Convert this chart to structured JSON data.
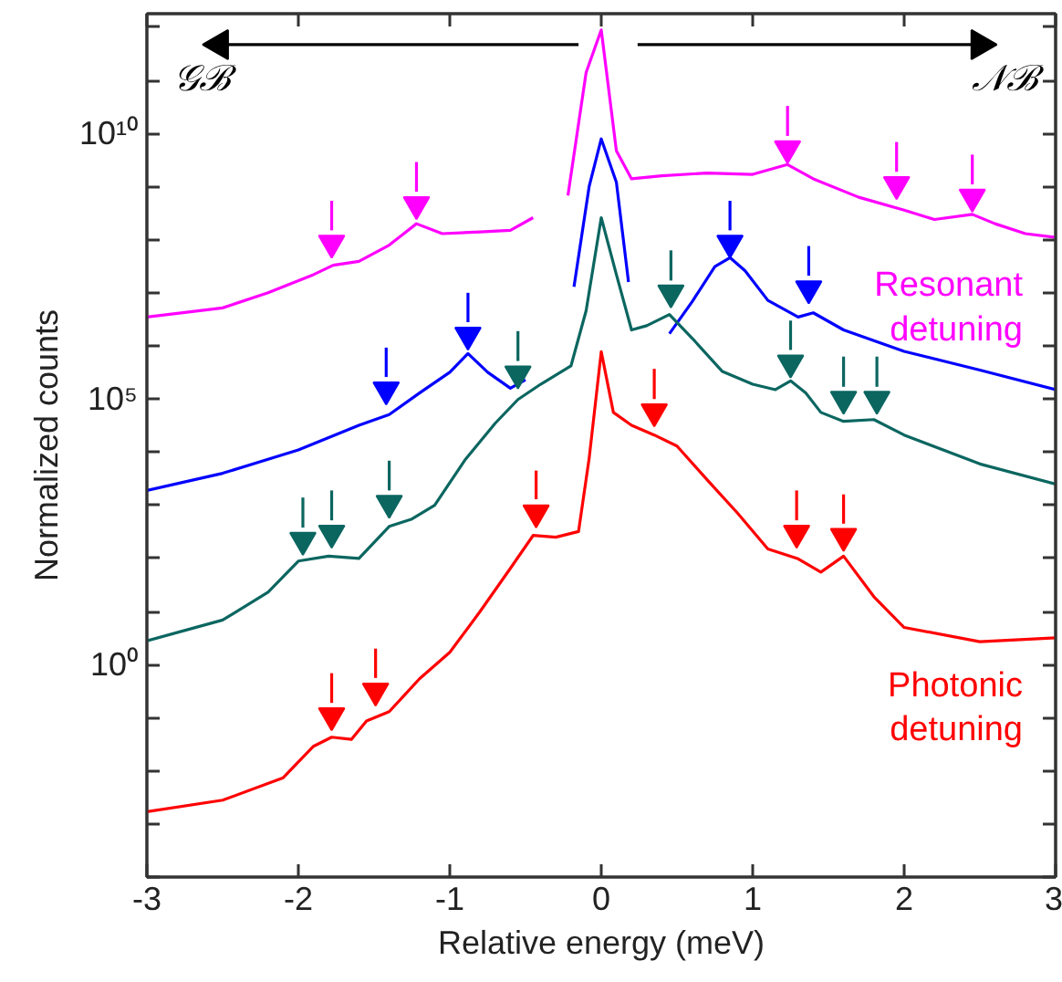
{
  "chart_data": {
    "type": "line",
    "xlabel": "Relative energy (meV)",
    "ylabel": "Normalized counts",
    "log": "y",
    "xlim": [
      -3,
      3
    ],
    "xticks": [
      -3,
      -2,
      -1,
      0,
      1,
      2,
      3
    ],
    "ylim": [
      0.0001,
      1800000000000.0
    ],
    "yticks": [
      {
        "value": 0.0001,
        "label": null
      },
      {
        "value": 0.001,
        "label": null
      },
      {
        "value": 0.01,
        "label": null
      },
      {
        "value": 0.1,
        "label": null
      },
      {
        "value": 1,
        "label": "10⁰"
      },
      {
        "value": 10,
        "label": null
      },
      {
        "value": 100,
        "label": null
      },
      {
        "value": 1000,
        "label": null
      },
      {
        "value": 10000,
        "label": null
      },
      {
        "value": 100000,
        "label": "10⁵"
      },
      {
        "value": 1000000,
        "label": null
      },
      {
        "value": 10000000,
        "label": null
      },
      {
        "value": 100000000,
        "label": null
      },
      {
        "value": 1000000000,
        "label": null
      },
      {
        "value": 10000000000,
        "label": "10¹⁰"
      },
      {
        "value": 100000000000,
        "label": null
      },
      {
        "value": 1000000000000,
        "label": null
      }
    ],
    "annotations": [
      "𝒢ℬ",
      "𝒩ℬ"
    ],
    "series": [
      {
        "name": "Resonant\ndetuning",
        "color": "#ff00ff",
        "x": [
          -3,
          -2.5,
          -2.2,
          -1.9,
          -1.77,
          -1.6,
          -1.4,
          -1.22,
          -1.05,
          -0.8,
          -0.6,
          -0.45,
          -0.35,
          -0.22,
          -0.1,
          0,
          0.1,
          0.2,
          0.4,
          0.7,
          1.0,
          1.23,
          1.4,
          1.7,
          2.0,
          2.2,
          2.45,
          2.6,
          2.8,
          3.0
        ],
        "values": [
          3500000.0,
          5200000.0,
          10000000.0,
          22000000.0,
          33000000.0,
          39000000.0,
          79000000.0,
          200000000.0,
          130000000.0,
          140000000.0,
          150000000.0,
          260000000.0,
          null,
          680000000.0,
          140000000000.0,
          890000000000.0,
          4700000000.0,
          1400000000.0,
          1600000000.0,
          1800000000.0,
          1700000000.0,
          2600000000.0,
          1400000000.0,
          630000000.0,
          360000000.0,
          240000000.0,
          300000000.0,
          200000000.0,
          130000000.0,
          110000000.0
        ]
      },
      {
        "color": "#0000ff",
        "x": [
          -3,
          -2.5,
          -2,
          -1.6,
          -1.4,
          -1.2,
          -1,
          -0.88,
          -0.75,
          -0.6,
          -0.5,
          -0.35,
          -0.18,
          -0.08,
          0,
          0.1,
          0.18,
          0.3,
          0.45,
          0.6,
          0.75,
          0.85,
          0.95,
          1.1,
          1.3,
          1.4,
          1.6,
          2.0,
          2.5,
          3.0
        ],
        "values": [
          1900.0,
          4000.0,
          11000.0,
          32000.0,
          51000.0,
          130000.0,
          320000.0,
          720000.0,
          320000.0,
          160000.0,
          230000.0,
          null,
          13000000.0,
          1000000000.0,
          7900000000.0,
          1200000000.0,
          16000000.0,
          null,
          1700000.0,
          6800000.0,
          31000000.0,
          46000000.0,
          26000000.0,
          7200000.0,
          3500000.0,
          4200000.0,
          2000000.0,
          790000.0,
          350000.0,
          150000.0
        ]
      },
      {
        "color": "#0b6660",
        "x": [
          -3,
          -2.5,
          -2.2,
          -2,
          -1.8,
          -1.6,
          -1.4,
          -1.25,
          -1.1,
          -0.9,
          -0.7,
          -0.55,
          -0.4,
          -0.2,
          -0.1,
          0,
          0.1,
          0.2,
          0.3,
          0.45,
          0.6,
          0.8,
          1.0,
          1.15,
          1.25,
          1.35,
          1.45,
          1.6,
          1.8,
          2.0,
          2.5,
          3.0
        ],
        "values": [
          2.8,
          6.9,
          23,
          89,
          110,
          100,
          400,
          550,
          1000,
          7100,
          35000.0,
          98000.0,
          190000.0,
          420000.0,
          4600000.0,
          260000000.0,
          22000000.0,
          2000000.0,
          2400000.0,
          3900000.0,
          1400000.0,
          330000.0,
          190000.0,
          150000.0,
          220000.0,
          130000.0,
          56000.0,
          38000.0,
          41000.0,
          21000.0,
          6000,
          2500
        ]
      },
      {
        "name": "Photonic\ndetuning",
        "color": "#ff0000",
        "x": [
          -3,
          -2.5,
          -2.1,
          -1.9,
          -1.78,
          -1.65,
          -1.55,
          -1.4,
          -1.2,
          -1,
          -0.8,
          -0.6,
          -0.45,
          -0.3,
          -0.15,
          -0.08,
          0,
          0.08,
          0.2,
          0.35,
          0.5,
          0.7,
          0.9,
          1.1,
          1.3,
          1.45,
          1.6,
          1.8,
          2.0,
          2.5,
          3.0
        ],
        "values": [
          0.0017,
          0.0028,
          0.0074,
          0.029,
          0.043,
          0.039,
          0.087,
          0.13,
          0.54,
          1.7,
          10,
          65,
          270,
          250,
          320,
          7600,
          780000.0,
          56000.0,
          32000.0,
          21000.0,
          13000.0,
          3000,
          710,
          150,
          98,
          55,
          110,
          19,
          5,
          2.7,
          3.2
        ]
      },
      {
        "type": "scatter",
        "marker": "triangle",
        "color": "#ff00ff",
        "x": [
          -1.78,
          -1.22,
          1.23,
          1.95,
          2.45
        ],
        "values": [
          86000000.0,
          460000000.0,
          5200000000.0,
          1100000000.0,
          640000000.0
        ],
        "errors": [
          [
            150000000.0,
            540000000.0
          ],
          [
            800000000.0,
            2900000000.0
          ],
          [
            9000000000.0,
            33000000000.0
          ],
          [
            1900000000.0,
            6900000000.0
          ],
          [
            1100000000.0,
            4000000000.0
          ]
        ]
      },
      {
        "type": "scatter",
        "marker": "triangle",
        "color": "#0000ff",
        "x": [
          -1.42,
          -0.88,
          0.85,
          1.37
        ],
        "values": [
          150000.0,
          1600000.0,
          86000000.0,
          12000000.0
        ],
        "errors": [
          [
            260000.0,
            930000.0
          ],
          [
            2800000.0,
            10000000.0
          ],
          [
            150000000.0,
            540000000.0
          ],
          [
            21000000.0,
            76000000.0
          ]
        ]
      },
      {
        "type": "scatter",
        "marker": "triangle",
        "color": "#0b6660",
        "x": [
          -1.97,
          -1.78,
          -1.4,
          -0.55,
          0.46,
          1.25,
          1.6,
          1.82
        ],
        "values": [
          220,
          300,
          1100,
          300000.0,
          10000000.0,
          480000.0,
          100000.0,
          100000.0
        ],
        "errors": [
          [
            380,
            1400
          ],
          [
            520,
            1900
          ],
          [
            1900,
            6900
          ],
          [
            520000.0,
            1900000.0
          ],
          [
            17000000.0,
            63000000.0
          ],
          [
            840000.0,
            3000000.0
          ],
          [
            170000.0,
            630000.0
          ],
          [
            170000.0,
            630000.0
          ]
        ]
      },
      {
        "type": "scatter",
        "marker": "triangle",
        "color": "#ff0000",
        "x": [
          -1.78,
          -1.49,
          -0.43,
          0.35,
          1.29,
          1.6
        ],
        "values": [
          0.11,
          0.32,
          720,
          58000.0,
          300,
          260
        ],
        "errors": [
          [
            0.19,
            0.69
          ],
          [
            0.56,
            2
          ],
          [
            1300,
            4500
          ],
          [
            100000.0,
            370000.0
          ],
          [
            520,
            1900
          ],
          [
            450,
            1600
          ]
        ]
      },
      {
        "type": "line",
        "marker": "triangle",
        "color": "#000000",
        "x": [
          -0.15,
          -2.52
        ],
        "values": [
          470000000000.0,
          470000000000.0
        ]
      },
      {
        "type": "line",
        "marker": "triangle",
        "color": "#000000",
        "x": [
          0.24,
          2.5
        ],
        "values": [
          470000000000.0,
          470000000000.0
        ]
      }
    ]
  }
}
